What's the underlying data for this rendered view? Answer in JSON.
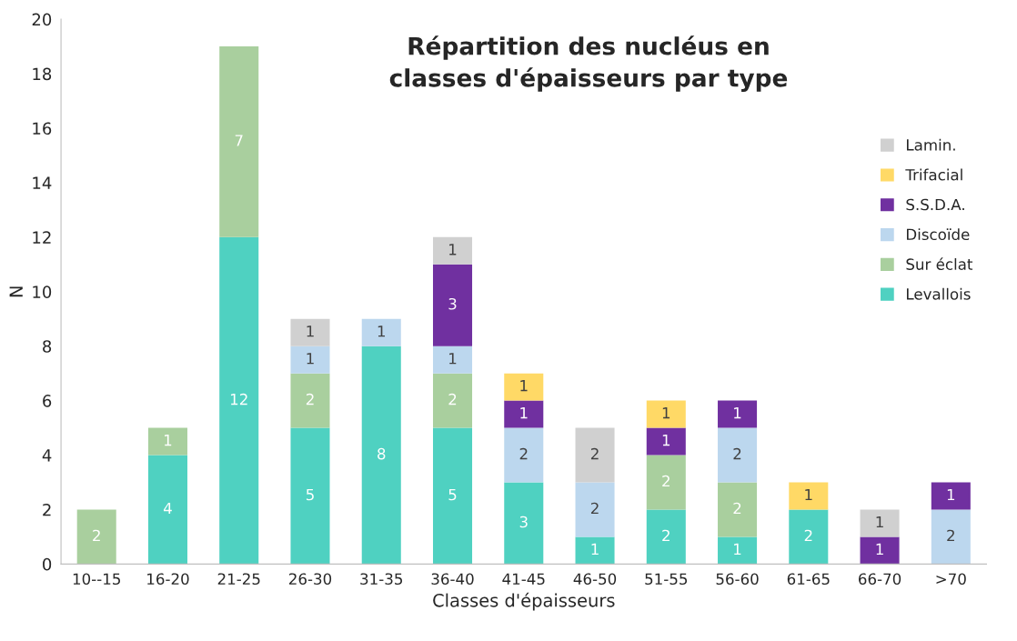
{
  "chart_data": {
    "type": "bar",
    "title": "Répartition des nucléus en\nclasses d'épaisseurs par type",
    "xlabel": "Classes d'épaisseurs",
    "ylabel": "N",
    "categories": [
      "10--15",
      "16-20",
      "21-25",
      "26-30",
      "31-35",
      "36-40",
      "41-45",
      "46-50",
      "51-55",
      "56-60",
      "61-65",
      "66-70",
      ">70"
    ],
    "stacked": true,
    "data_labels": true,
    "legend": "right",
    "grid": false,
    "ylim": [
      0,
      20
    ],
    "yticks": [
      0,
      2,
      4,
      6,
      8,
      10,
      12,
      14,
      16,
      18,
      20
    ],
    "series": [
      {
        "name": "Levallois",
        "color": "#4fd1c1",
        "values": [
          null,
          4,
          12,
          5,
          8,
          5,
          3,
          1,
          2,
          1,
          2,
          null,
          null
        ]
      },
      {
        "name": "Sur éclat",
        "color": "#a9cf9e",
        "values": [
          2,
          1,
          7,
          2,
          null,
          2,
          null,
          null,
          2,
          2,
          null,
          null,
          null
        ]
      },
      {
        "name": "Discoïde",
        "color": "#bcd7ee",
        "values": [
          null,
          null,
          null,
          1,
          1,
          1,
          2,
          2,
          null,
          2,
          null,
          null,
          2
        ]
      },
      {
        "name": "S.S.D.A.",
        "color": "#7030a0",
        "values": [
          null,
          null,
          null,
          null,
          null,
          3,
          1,
          null,
          1,
          1,
          null,
          1,
          1
        ]
      },
      {
        "name": "Trifacial",
        "color": "#ffd966",
        "values": [
          null,
          null,
          null,
          null,
          null,
          null,
          1,
          null,
          1,
          null,
          1,
          null,
          null
        ]
      },
      {
        "name": "Lamin.",
        "color": "#d0d0d0",
        "values": [
          null,
          null,
          null,
          1,
          null,
          1,
          null,
          2,
          null,
          null,
          null,
          1,
          null
        ]
      }
    ]
  }
}
